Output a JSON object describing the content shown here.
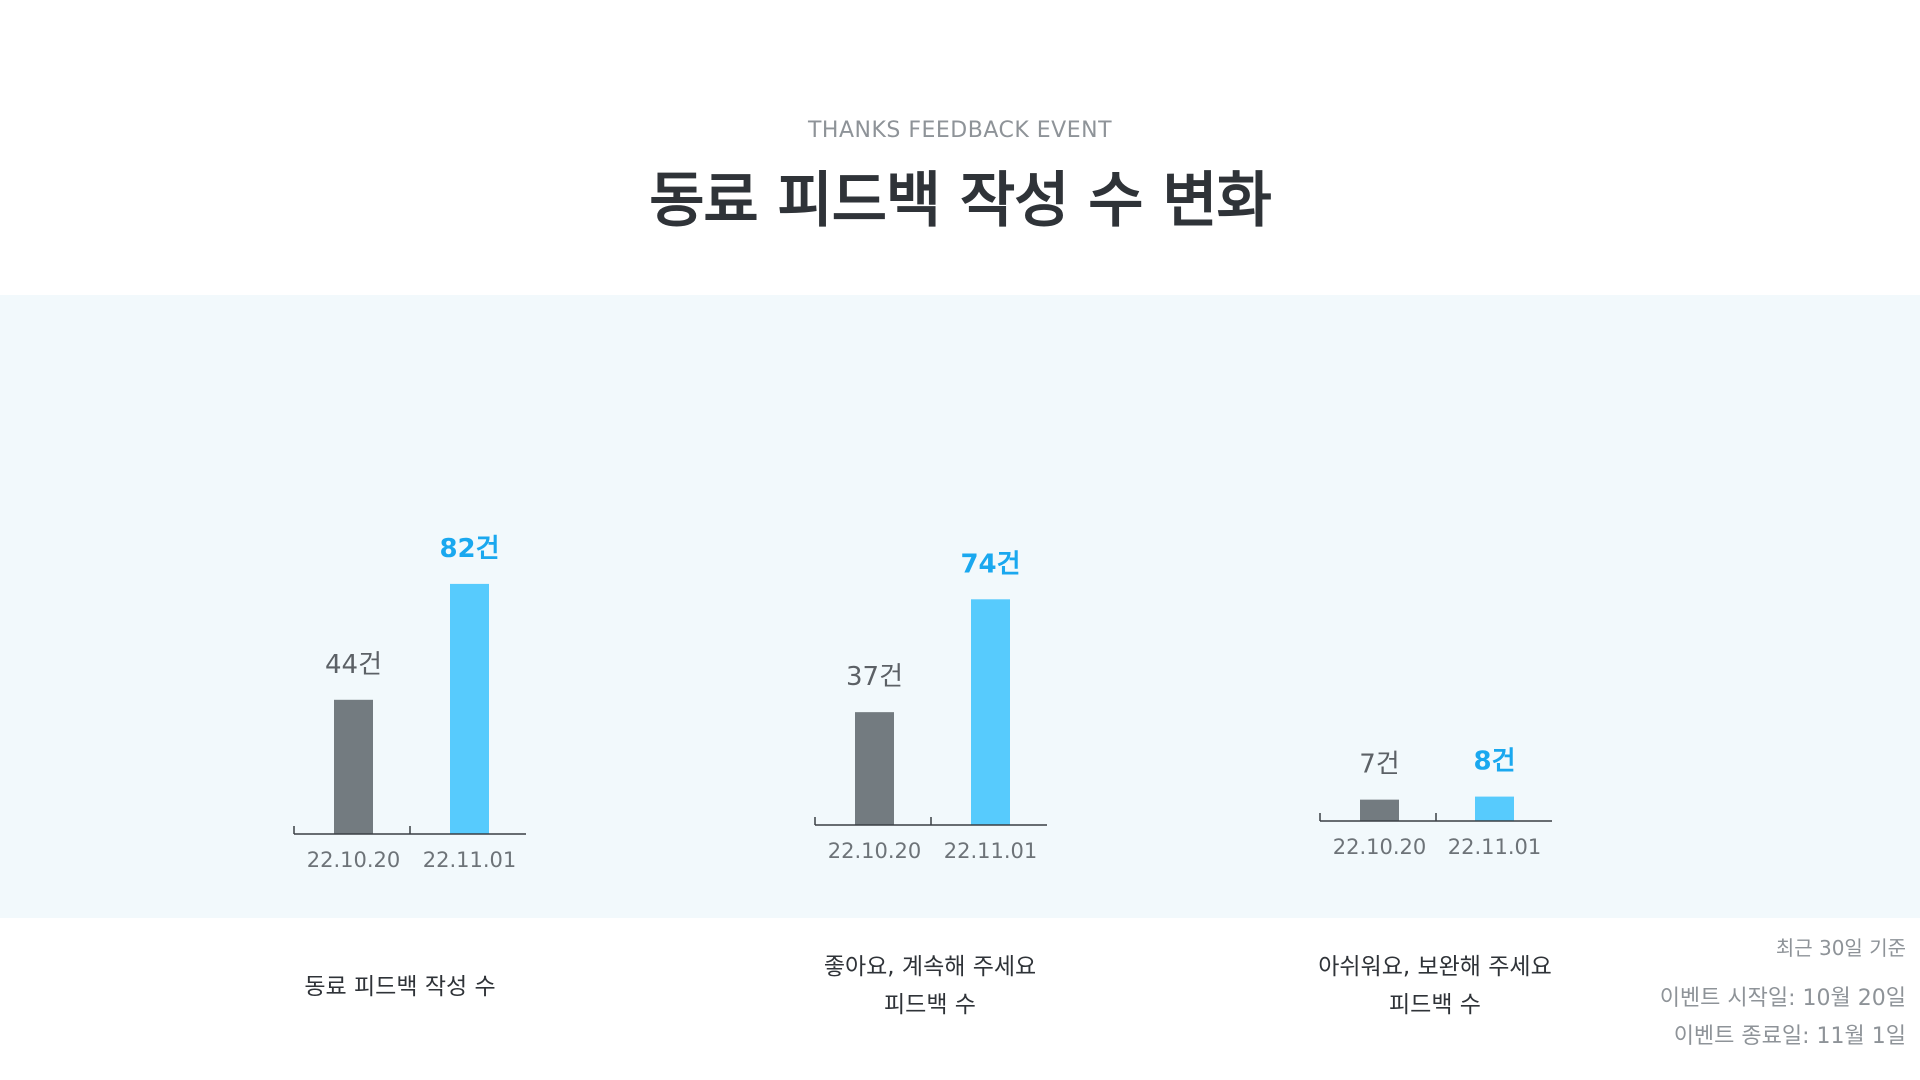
{
  "header": {
    "subtitle": "THANKS FEEDBACK EVENT",
    "title": "동료 피드백 작성 수 변화"
  },
  "chart_data": [
    {
      "type": "bar",
      "categories": [
        "22.10.20",
        "22.11.01"
      ],
      "values": [
        44,
        82
      ],
      "value_labels": [
        "44건",
        "82건"
      ],
      "label_lines": [
        "동료 피드백 작성 수"
      ],
      "colors": [
        "#737b80",
        "#57cbfd"
      ],
      "highlight_label_color": "#1aa8ef"
    },
    {
      "type": "bar",
      "categories": [
        "22.10.20",
        "22.11.01"
      ],
      "values": [
        37,
        74
      ],
      "value_labels": [
        "37건",
        "74건"
      ],
      "label_lines": [
        "좋아요, 계속해 주세요",
        "피드백 수"
      ],
      "colors": [
        "#737b80",
        "#57cbfd"
      ],
      "highlight_label_color": "#1aa8ef"
    },
    {
      "type": "bar",
      "categories": [
        "22.10.20",
        "22.11.01"
      ],
      "values": [
        7,
        8
      ],
      "value_labels": [
        "7건",
        "8건"
      ],
      "label_lines": [
        "아쉬워요, 보완해 주세요",
        "피드백 수"
      ],
      "colors": [
        "#737b80",
        "#57cbfd"
      ],
      "highlight_label_color": "#1aa8ef"
    }
  ],
  "notes": {
    "basis": "최근 30일 기준",
    "start": "이벤트 시작일: 10월 20일",
    "end": "이벤트 종료일: 11월 1일"
  }
}
